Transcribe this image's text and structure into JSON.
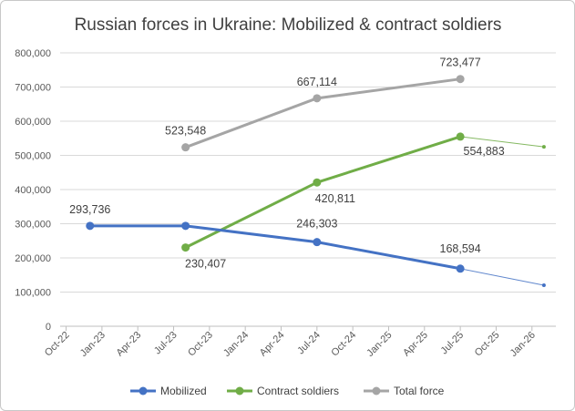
{
  "chart_data": {
    "type": "line",
    "title": "Russian forces in Ukraine: Mobilized & contract soldiers",
    "xlabel": "",
    "ylabel": "",
    "ylim": [
      0,
      800000
    ],
    "y_ticks": [
      0,
      100000,
      200000,
      300000,
      400000,
      500000,
      600000,
      700000,
      800000
    ],
    "y_tick_labels": [
      "0",
      "100,000",
      "200,000",
      "300,000",
      "400,000",
      "500,000",
      "600,000",
      "700,000",
      "800,000"
    ],
    "x_tick_labels": [
      "Oct-22",
      "Jan-23",
      "Apr-23",
      "Jul-23",
      "Oct-23",
      "Jan-24",
      "Apr-24",
      "Jul-24",
      "Oct-24",
      "Jan-25",
      "Apr-25",
      "Jul-25",
      "Oct-25",
      "Jan-26"
    ],
    "grid": true,
    "legend_position": "bottom",
    "series": [
      {
        "name": "Mobilized",
        "color": "#4472c4",
        "x": [
          "Dec-22",
          "Aug-23",
          "Jul-24",
          "Jul-25"
        ],
        "values": [
          293736,
          293736,
          246303,
          168594
        ],
        "labels": [
          "293,736",
          "",
          "246,303",
          "168,594"
        ],
        "trend": {
          "x": [
            "Jul-25",
            "Feb-26"
          ],
          "values": [
            168594,
            120000
          ]
        }
      },
      {
        "name": "Contract soldiers",
        "color": "#70ad47",
        "x": [
          "Aug-23",
          "Jul-24",
          "Jul-25"
        ],
        "values": [
          230407,
          420811,
          554883
        ],
        "labels": [
          "230,407",
          "420,811",
          "554,883"
        ],
        "trend": {
          "x": [
            "Jul-25",
            "Feb-26"
          ],
          "values": [
            554883,
            525000
          ]
        }
      },
      {
        "name": "Total force",
        "color": "#a5a5a5",
        "x": [
          "Aug-23",
          "Jul-24",
          "Jul-25"
        ],
        "values": [
          523548,
          667114,
          723477
        ],
        "labels": [
          "523,548",
          "667,114",
          "723,477"
        ]
      }
    ]
  }
}
